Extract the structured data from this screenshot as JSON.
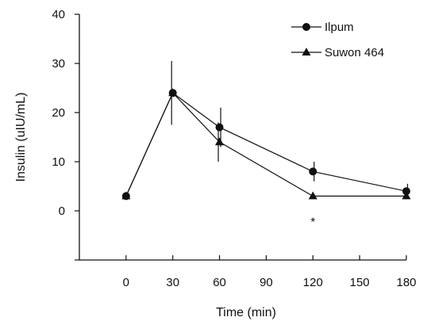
{
  "chart_data": {
    "type": "line",
    "xlabel": "Time (min)",
    "ylabel": "Insulin (uIU/mL)",
    "x": [
      0,
      30,
      60,
      120,
      180
    ],
    "xticks": [
      0,
      30,
      60,
      90,
      120,
      150,
      180
    ],
    "xlim": [
      -30,
      180
    ],
    "ylim": [
      -10,
      40
    ],
    "yticks": [
      0,
      10,
      20,
      30,
      40
    ],
    "grid": false,
    "legend_position": "top-right",
    "series": [
      {
        "name": "Ilpum",
        "marker": "circle",
        "values": [
          3,
          24,
          17,
          8,
          4
        ],
        "error": [
          0,
          0,
          4,
          2,
          1.5
        ]
      },
      {
        "name": "Suwon 464",
        "marker": "triangle",
        "values": [
          3,
          24,
          14,
          3,
          3
        ],
        "error": [
          0,
          6.5,
          4,
          0,
          0
        ]
      }
    ],
    "annotations": [
      {
        "text": "*",
        "x": 120,
        "y": -1.5
      }
    ]
  }
}
